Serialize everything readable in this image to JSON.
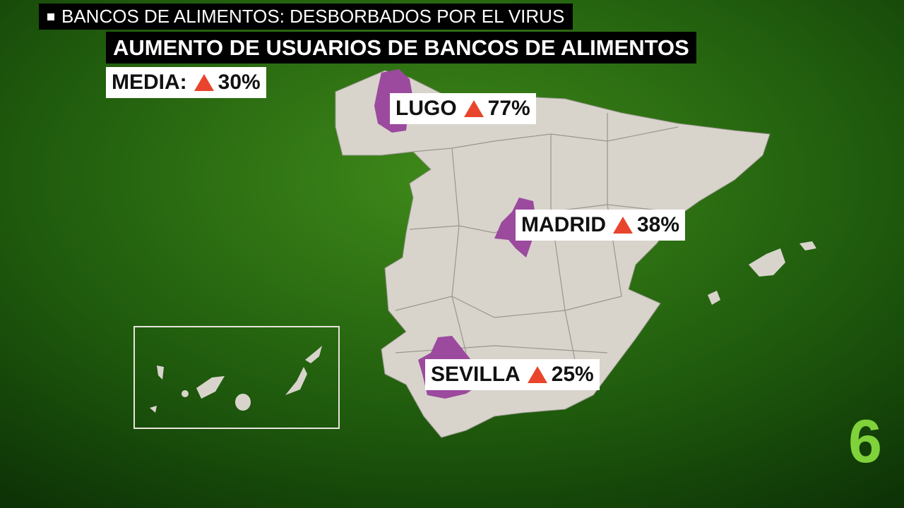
{
  "ticker": "BANCOS DE ALIMENTOS: DESBORBADOS POR EL VIRUS",
  "title": "AUMENTO DE USUARIOS DE BANCOS DE ALIMENTOS",
  "average": {
    "label": "MEDIA:",
    "value": "30%"
  },
  "regions": [
    {
      "name": "LUGO",
      "value": "77%"
    },
    {
      "name": "MADRID",
      "value": "38%"
    },
    {
      "name": "SEVILLA",
      "value": "25%"
    }
  ],
  "logo": "6"
}
